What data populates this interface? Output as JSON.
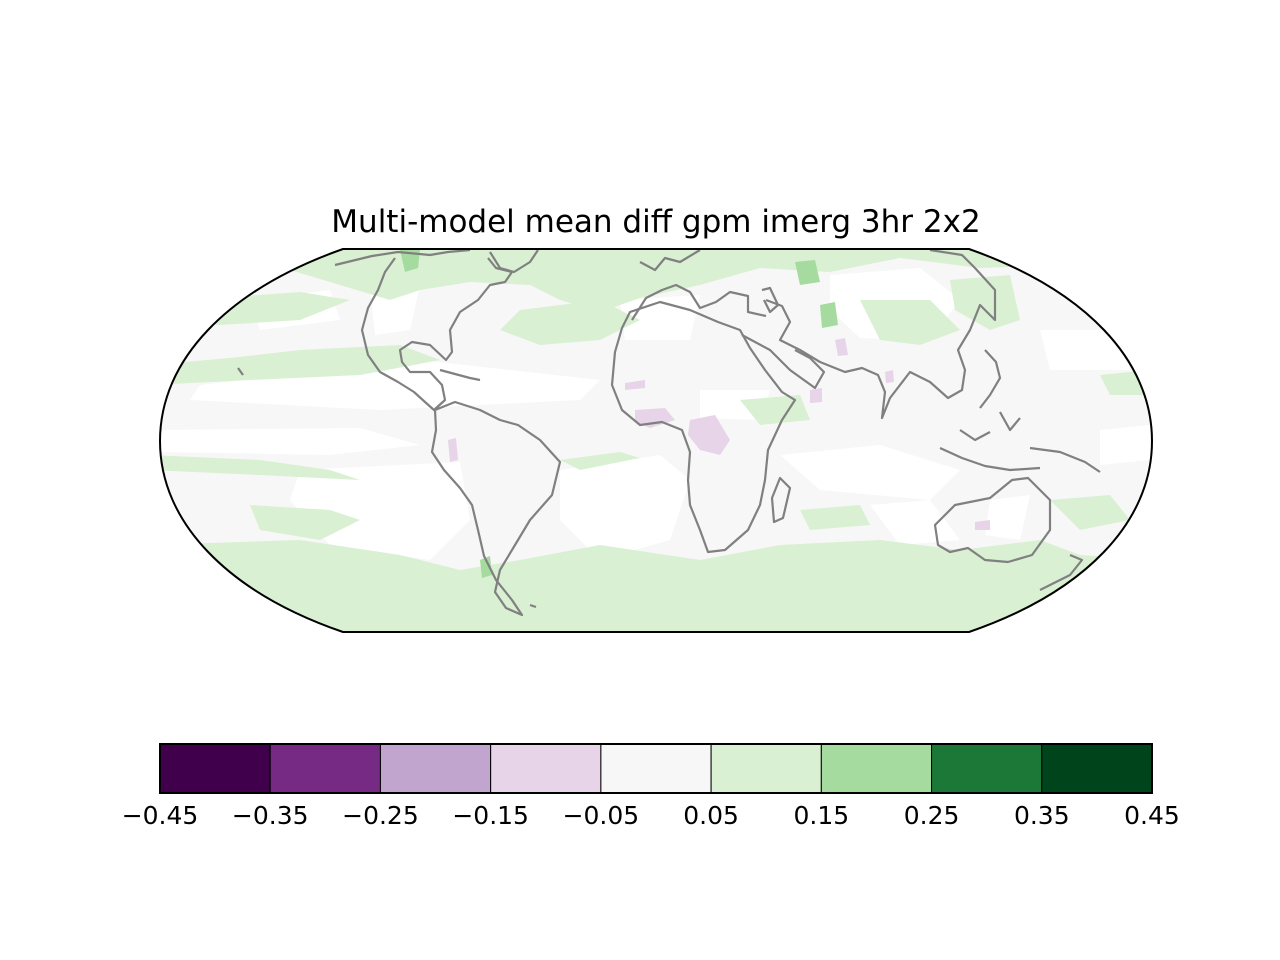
{
  "chart_data": {
    "type": "heatmap",
    "map_type": "global filled-contour map",
    "projection": "Robinson",
    "title": "Multi-model mean diff gpm imerg 3hr 2x2",
    "coastline_color": "#808080",
    "ocean_background": "#ffffff",
    "colormap": "PRGn",
    "colorbar": {
      "orientation": "horizontal",
      "placement": "bottom",
      "levels": [
        -0.45,
        -0.35,
        -0.25,
        -0.15,
        -0.05,
        0.05,
        0.15,
        0.25,
        0.35,
        0.45
      ],
      "tick_labels": [
        "−0.45",
        "−0.35",
        "−0.25",
        "−0.15",
        "−0.05",
        "0.05",
        "0.15",
        "0.25",
        "0.35",
        "0.45"
      ],
      "colors": [
        "#40004b",
        "#762a83",
        "#c2a5cf",
        "#e7d4e8",
        "#f7f7f7",
        "#d9f0d3",
        "#a6dba0",
        "#1b7837",
        "#00441b"
      ]
    }
  }
}
